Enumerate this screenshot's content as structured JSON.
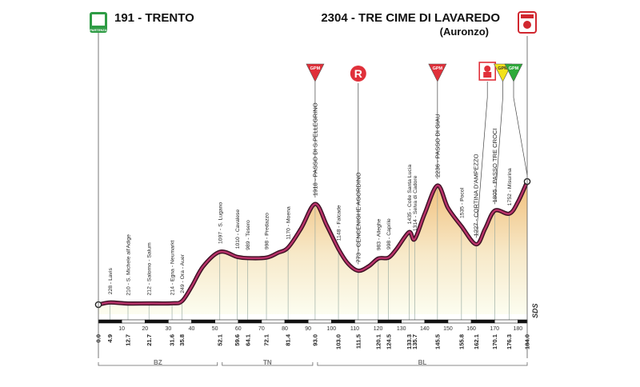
{
  "header": {
    "start_title": "191 - TRENTO",
    "finish_title": "2304 - TRE CIME DI LAVAREDO",
    "finish_subtitle": "(Auronzo)",
    "start_badge": "PARTENZA",
    "brand_vertical": "SDS"
  },
  "chart_data": {
    "type": "area",
    "title": "",
    "xlabel": "",
    "ylabel": "",
    "xlim": [
      0,
      184.0
    ],
    "ylim": [
      0,
      2400
    ],
    "x_ticks": [
      0,
      10,
      20,
      30,
      40,
      50,
      60,
      70,
      80,
      90,
      100,
      110,
      120,
      130,
      140,
      150,
      160,
      170,
      180
    ],
    "profile": [
      {
        "x": 0.0,
        "y": 191
      },
      {
        "x": 4.9,
        "y": 228
      },
      {
        "x": 12.7,
        "y": 210
      },
      {
        "x": 21.7,
        "y": 212
      },
      {
        "x": 31.6,
        "y": 214
      },
      {
        "x": 35.8,
        "y": 249
      },
      {
        "x": 40,
        "y": 500
      },
      {
        "x": 45,
        "y": 850
      },
      {
        "x": 52.1,
        "y": 1097
      },
      {
        "x": 59.6,
        "y": 1010
      },
      {
        "x": 64.1,
        "y": 989
      },
      {
        "x": 72.1,
        "y": 998
      },
      {
        "x": 77,
        "y": 1080
      },
      {
        "x": 81.4,
        "y": 1170
      },
      {
        "x": 87,
        "y": 1500
      },
      {
        "x": 93.0,
        "y": 1918
      },
      {
        "x": 98,
        "y": 1550
      },
      {
        "x": 103.0,
        "y": 1148
      },
      {
        "x": 107,
        "y": 900
      },
      {
        "x": 111.5,
        "y": 773
      },
      {
        "x": 116,
        "y": 850
      },
      {
        "x": 120.1,
        "y": 983
      },
      {
        "x": 124.5,
        "y": 998
      },
      {
        "x": 128,
        "y": 1150
      },
      {
        "x": 133.3,
        "y": 1435
      },
      {
        "x": 135.7,
        "y": 1314
      },
      {
        "x": 140,
        "y": 1750
      },
      {
        "x": 145.5,
        "y": 2236
      },
      {
        "x": 150,
        "y": 1850
      },
      {
        "x": 155.8,
        "y": 1535
      },
      {
        "x": 162.1,
        "y": 1227
      },
      {
        "x": 166,
        "y": 1500
      },
      {
        "x": 170.1,
        "y": 1805
      },
      {
        "x": 176.3,
        "y": 1752
      },
      {
        "x": 180,
        "y": 1950
      },
      {
        "x": 184.0,
        "y": 2304
      }
    ],
    "point_labels": [
      {
        "x": 4.9,
        "y": 228,
        "text": "228 - Lavis"
      },
      {
        "x": 12.7,
        "y": 210,
        "text": "210 - S. Michele all'Adige"
      },
      {
        "x": 21.7,
        "y": 212,
        "text": "212 - Salorno - Salum"
      },
      {
        "x": 31.6,
        "y": 214,
        "text": "214 - Egna - Neumarkt"
      },
      {
        "x": 35.8,
        "y": 249,
        "text": "249 - Ora - Auer"
      },
      {
        "x": 52.1,
        "y": 1097,
        "text": "1097 - S. Lugano"
      },
      {
        "x": 59.6,
        "y": 1010,
        "text": "1010 - Cavalese"
      },
      {
        "x": 64.1,
        "y": 989,
        "text": "989 - Tesero"
      },
      {
        "x": 72.1,
        "y": 998,
        "text": "998 - Predazzo"
      },
      {
        "x": 81.4,
        "y": 1170,
        "text": "1170 - Moena"
      },
      {
        "x": 93.0,
        "y": 1918,
        "text": "1918 - PASSO DI S.PELLEGRINO"
      },
      {
        "x": 103.0,
        "y": 1148,
        "text": "1148 - Falcade"
      },
      {
        "x": 111.5,
        "y": 773,
        "text": "773 - CENCENIGHE AGORDINO"
      },
      {
        "x": 120.1,
        "y": 983,
        "text": "983 - Alleghe"
      },
      {
        "x": 124.5,
        "y": 998,
        "text": "998 - Caprile"
      },
      {
        "x": 133.3,
        "y": 1435,
        "text": "1435 - Colle Santa Lucia"
      },
      {
        "x": 135.7,
        "y": 1314,
        "text": "1314 - Selva di Cadore"
      },
      {
        "x": 145.5,
        "y": 2236,
        "text": "2236 - PASSO DI GIAU"
      },
      {
        "x": 155.8,
        "y": 1535,
        "text": "1535 - Pocol"
      },
      {
        "x": 162.1,
        "y": 1227,
        "text": "1227 - CORTINA D'AMPEZZO"
      },
      {
        "x": 170.1,
        "y": 1805,
        "text": "1805 - PASSO TRE CROCI"
      },
      {
        "x": 176.3,
        "y": 1752,
        "text": "1752 - Misurina"
      }
    ],
    "km_labels": [
      "0.0",
      "4.9",
      "12.7",
      "21.7",
      "31.6",
      "35.8",
      "52.1",
      "59.6",
      "64.1",
      "72.1",
      "81.4",
      "93.0",
      "103.0",
      "111.5",
      "120.1",
      "124.5",
      "133.3",
      "135.7",
      "145.5",
      "155.8",
      "162.1",
      "170.1",
      "176.3",
      "184.0"
    ],
    "markers": [
      {
        "x": 93.0,
        "type": "GPM",
        "color": "#e0303a",
        "text": "GPM"
      },
      {
        "x": 111.5,
        "type": "R",
        "color": "#e0303a",
        "text": "R"
      },
      {
        "x": 145.5,
        "type": "GPM",
        "color": "#e0303a",
        "text": "GPM"
      },
      {
        "x": 162.1,
        "type": "feed",
        "color": "#e0303a",
        "text": ""
      },
      {
        "x": 170.1,
        "type": "GPM",
        "color": "#f2e21a",
        "text": "GPM"
      },
      {
        "x": 184.0,
        "type": "GPM",
        "color": "#2eaa3a",
        "text": "GPM"
      }
    ],
    "regions": [
      {
        "from": 0.0,
        "to": 52.1,
        "text": "BZ"
      },
      {
        "from": 52.1,
        "to": 93.0,
        "text": "TN"
      },
      {
        "from": 93.0,
        "to": 184.0,
        "text": "BL"
      }
    ],
    "colors": {
      "line": "#9b1b4e",
      "fill_low": "#fafbe6",
      "fill_high": "#f3c98b",
      "grid": "#8fa39b"
    }
  }
}
